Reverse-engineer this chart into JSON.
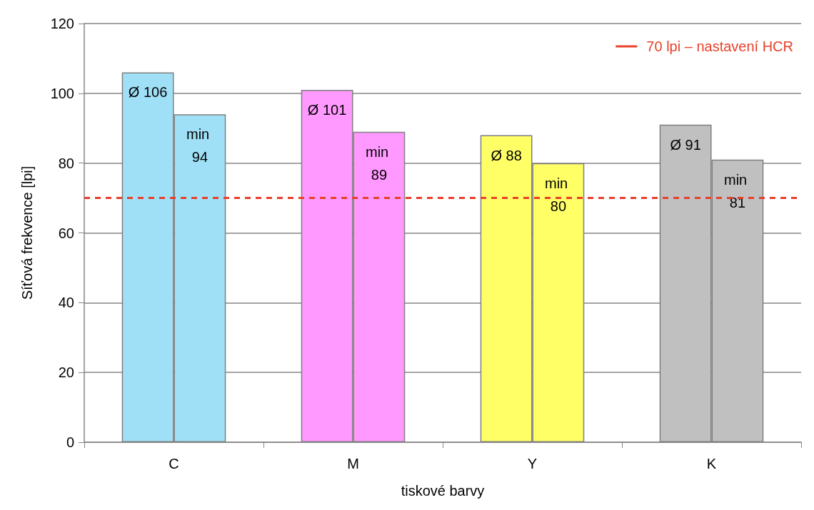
{
  "chart_data": {
    "type": "bar",
    "xlabel": "tiskové barvy",
    "ylabel": "Síťová frekvence [lpi]",
    "categories": [
      "C",
      "M",
      "Y",
      "K"
    ],
    "series": [
      {
        "colors": [
          "#a0e0f7",
          "#ff99ff",
          "#ffff66",
          "#c0c0c0"
        ],
        "values": [
          106,
          101,
          88,
          91
        ],
        "value_labels": [
          "Ø 106",
          "Ø 101",
          "Ø 88",
          "Ø 91"
        ]
      },
      {
        "colors": [
          "#a0e0f7",
          "#ff99ff",
          "#ffff66",
          "#c0c0c0"
        ],
        "values": [
          94,
          89,
          80,
          81
        ],
        "value_labels": [
          "min 94",
          "min 89",
          "min 80",
          "min 81"
        ]
      }
    ],
    "ylim": [
      0,
      120
    ],
    "yticks": [
      0,
      20,
      40,
      60,
      80,
      100,
      120
    ],
    "grid": "y",
    "ref_lines": [
      {
        "axis": "y",
        "value": 70,
        "label": "70 lpi – nastavení HCR",
        "color": "#e8402a",
        "line_style": "dashed"
      }
    ],
    "legend": "top right"
  }
}
